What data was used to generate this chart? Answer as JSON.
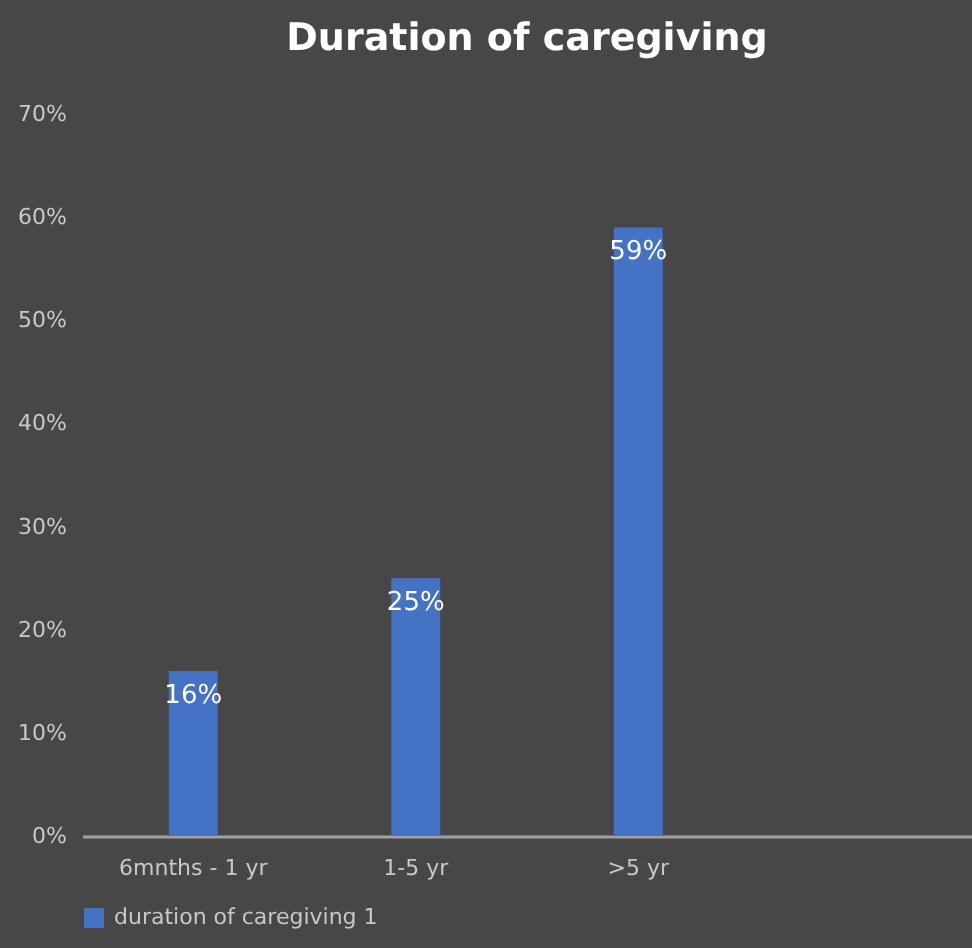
{
  "chart_data": {
    "type": "bar",
    "title": "Duration of caregiving",
    "categories": [
      "6mnths - 1 yr",
      "1-5 yr",
      ">5 yr",
      null
    ],
    "series": [
      {
        "name": "duration of caregiving 1",
        "color": "#4472c4",
        "values": [
          16,
          25,
          59,
          null
        ],
        "value_labels": [
          "16%",
          "25%",
          "59%",
          null
        ]
      }
    ],
    "ylim": [
      0,
      70
    ],
    "yticks": [
      {
        "value": 0,
        "label": "0%"
      },
      {
        "value": 10,
        "label": "10%"
      },
      {
        "value": 20,
        "label": "20%"
      },
      {
        "value": 30,
        "label": "30%"
      },
      {
        "value": 40,
        "label": "40%"
      },
      {
        "value": 50,
        "label": "50%"
      },
      {
        "value": 60,
        "label": "60%"
      },
      {
        "value": 70,
        "label": "70%"
      }
    ],
    "grid": false,
    "legend": "bottom"
  }
}
